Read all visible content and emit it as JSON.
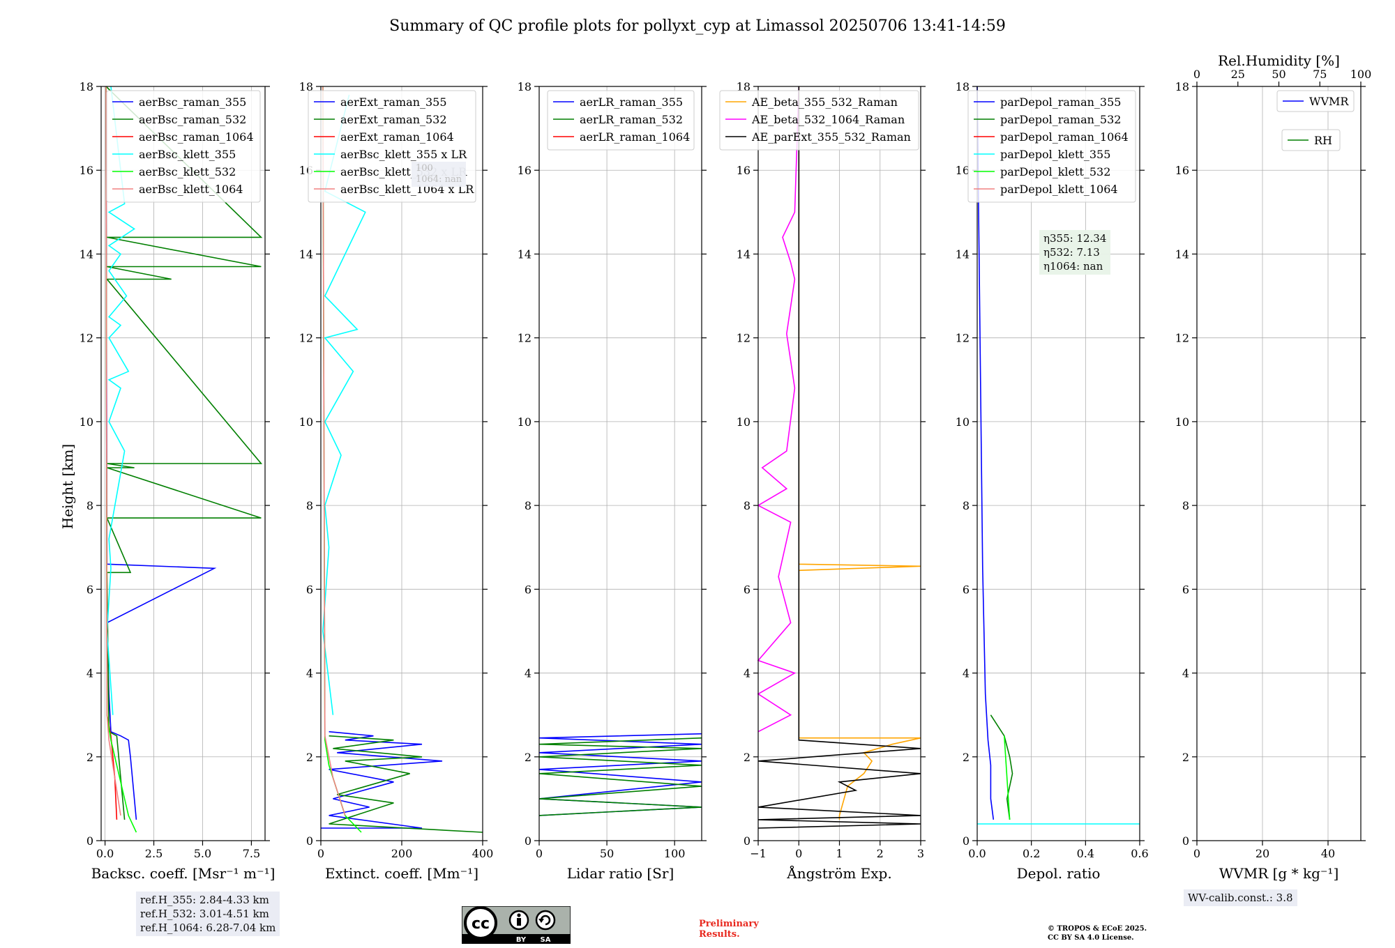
{
  "title": "Summary of QC profile plots for pollyxt_cyp at Limassol 20250706 13:41-14:59",
  "ylabel": "Height [km]",
  "chart_data": [
    {
      "type": "line",
      "id": "bsc",
      "xlabel": "Backsc. coeff. [Msr⁻¹ m⁻¹]",
      "xlim": [
        -0.2,
        8.2
      ],
      "xticks": [
        0,
        2.5,
        5,
        7.5
      ],
      "xtick_labels": [
        "0.0",
        "2.5",
        "5.0",
        "7.5"
      ],
      "ylim": [
        0,
        18
      ],
      "yticks": [
        0,
        2,
        4,
        6,
        8,
        10,
        12,
        14,
        16,
        18
      ],
      "grid": true,
      "legend_position": "top-right",
      "series": [
        {
          "name": "aerBsc_raman_355",
          "color": "#0000ff",
          "x": [
            1.6,
            1.5,
            1.4,
            1.3,
            1.2,
            0.8,
            0.3,
            0.2,
            0.1,
            5.6,
            0.1,
            0.05
          ],
          "y": [
            0.5,
            1.0,
            1.5,
            2.0,
            2.4,
            2.5,
            2.6,
            3.5,
            5.2,
            6.5,
            6.6,
            18.0
          ]
        },
        {
          "name": "aerBsc_raman_532",
          "color": "#007f00",
          "x": [
            1.0,
            0.9,
            0.8,
            0.7,
            0.6,
            0.2,
            0.1,
            1.3,
            0.1,
            8.0,
            0.1,
            1.5,
            0.1,
            8.0,
            0.1,
            3.4,
            0.1,
            8.0,
            0.1,
            8.0,
            0.05
          ],
          "y": [
            0.5,
            1.0,
            1.5,
            2.0,
            2.5,
            2.6,
            6.4,
            6.4,
            7.7,
            7.7,
            8.9,
            8.9,
            9.0,
            9.0,
            13.4,
            13.4,
            13.7,
            13.7,
            14.4,
            14.4,
            18.0
          ]
        },
        {
          "name": "aerBsc_raman_1064",
          "color": "#ff0000",
          "x": [
            0.6,
            0.5,
            0.3,
            0.1,
            0.05
          ],
          "y": [
            0.5,
            1.5,
            2.5,
            3.0,
            18.0
          ]
        },
        {
          "name": "aerBsc_klett_355",
          "color": "#00ffff",
          "x": [
            0.4,
            0.1,
            0.3,
            0.2,
            1.0,
            0.2,
            0.8,
            0.2,
            1.2,
            0.2,
            0.8,
            0.2,
            1.1,
            0.2,
            0.8,
            0.2,
            1.5,
            0.2,
            1.0,
            0.3
          ],
          "y": [
            3.0,
            5.0,
            6.5,
            7.2,
            9.3,
            10.0,
            10.8,
            11.0,
            11.2,
            12.0,
            12.3,
            12.5,
            13.0,
            13.6,
            14.0,
            14.2,
            14.6,
            15.0,
            15.2,
            18.0
          ]
        },
        {
          "name": "aerBsc_klett_532",
          "color": "#00ff00",
          "x": [
            1.6,
            1.2,
            0.9,
            0.6,
            0.3,
            0.1,
            0.05
          ],
          "y": [
            0.2,
            0.6,
            1.2,
            1.8,
            2.4,
            3.0,
            18.0
          ]
        },
        {
          "name": "aerBsc_klett_1064",
          "color": "#f08080",
          "x": [
            0.8,
            0.6,
            0.4,
            0.2,
            0.1,
            0.05
          ],
          "y": [
            0.6,
            1.2,
            1.8,
            2.4,
            3.0,
            18.0
          ]
        }
      ]
    },
    {
      "type": "line",
      "id": "ext",
      "xlabel": "Extinct. coeff. [Mm⁻¹]",
      "xlim": [
        0,
        400
      ],
      "xticks": [
        0,
        200,
        400
      ],
      "xtick_labels": [
        "0",
        "200",
        "400"
      ],
      "ylim": [
        0,
        18
      ],
      "yticks": [
        0,
        2,
        4,
        6,
        8,
        10,
        12,
        14,
        16,
        18
      ],
      "grid": true,
      "legend_position": "top-right",
      "series": [
        {
          "name": "aerExt_raman_355",
          "color": "#0000ff",
          "x": [
            0,
            250,
            20,
            120,
            30,
            180,
            20,
            300,
            40,
            250,
            60,
            130,
            20
          ],
          "y": [
            0.3,
            0.3,
            0.6,
            0.8,
            1.0,
            1.4,
            1.7,
            1.9,
            2.1,
            2.3,
            2.4,
            2.5,
            2.6
          ]
        },
        {
          "name": "aerExt_raman_532",
          "color": "#007f00",
          "x": [
            400,
            20,
            180,
            40,
            220,
            60,
            250,
            30,
            180,
            20
          ],
          "y": [
            0.2,
            0.4,
            0.9,
            1.1,
            1.6,
            1.9,
            2.0,
            2.2,
            2.4,
            2.5
          ]
        },
        {
          "name": "aerExt_raman_1064",
          "color": "#ff0000",
          "x": [
            0
          ],
          "y": [
            0
          ]
        },
        {
          "name": "aerBsc_klett_355 x LR",
          "color": "#00ffff",
          "x": [
            30,
            5,
            20,
            10,
            50,
            10,
            80,
            10,
            90,
            10,
            110,
            10,
            70
          ],
          "y": [
            3.0,
            5.0,
            7.0,
            8.0,
            9.2,
            10.0,
            11.2,
            12.0,
            12.2,
            13.0,
            15.0,
            15.5,
            17.8
          ]
        },
        {
          "name": "aerBsc_klett_532 x LR",
          "color": "#00ff00",
          "x": [
            100,
            60,
            40,
            20,
            10,
            5
          ],
          "y": [
            0.2,
            0.6,
            1.2,
            1.8,
            2.4,
            18.0
          ]
        },
        {
          "name": "aerBsc_klett_1064 x LR",
          "color": "#f08080",
          "x": [
            60,
            30,
            10,
            5
          ],
          "y": [
            0.6,
            1.5,
            2.5,
            18.0
          ]
        }
      ]
    },
    {
      "type": "line",
      "id": "lr",
      "xlabel": "Lidar ratio [Sr]",
      "xlim": [
        0,
        120
      ],
      "xticks": [
        0,
        50,
        100
      ],
      "xtick_labels": [
        "0",
        "50",
        "100"
      ],
      "ylim": [
        0,
        18
      ],
      "yticks": [
        0,
        2,
        4,
        6,
        8,
        10,
        12,
        14,
        16,
        18
      ],
      "grid": true,
      "legend_position": "top-right",
      "series": [
        {
          "name": "aerLR_raman_355",
          "color": "#0000ff",
          "x": [
            0,
            120,
            0,
            120,
            0,
            120,
            0,
            120,
            0,
            120
          ],
          "y": [
            0.6,
            0.8,
            1.0,
            1.4,
            1.7,
            1.9,
            2.1,
            2.3,
            2.45,
            2.55
          ]
        },
        {
          "name": "aerLR_raman_532",
          "color": "#007f00",
          "x": [
            0,
            120,
            0,
            120,
            0,
            120,
            0,
            120,
            0,
            120
          ],
          "y": [
            0.6,
            0.8,
            1.0,
            1.3,
            1.6,
            1.8,
            2.0,
            2.2,
            2.3,
            2.45
          ]
        },
        {
          "name": "aerLR_raman_1064",
          "color": "#ff0000",
          "x": [
            0
          ],
          "y": [
            0
          ]
        }
      ]
    },
    {
      "type": "line",
      "id": "ae",
      "xlabel": "Ångström Exp.",
      "xlim": [
        -1,
        3
      ],
      "xticks": [
        -1,
        0,
        1,
        2,
        3
      ],
      "xtick_labels": [
        "−1",
        "0",
        "1",
        "2",
        "3"
      ],
      "ylim": [
        0,
        18
      ],
      "yticks": [
        0,
        2,
        4,
        6,
        8,
        10,
        12,
        14,
        16,
        18
      ],
      "grid": true,
      "legend_position": "top-center",
      "series": [
        {
          "name": "AE_beta_355_532_Raman",
          "color": "#ffa500",
          "x": [
            1.0,
            1.0,
            1.2,
            1.6,
            1.8,
            1.6,
            2.3,
            3.0,
            0.0,
            0.0,
            3.0,
            0.0,
            0.0
          ],
          "y": [
            0.5,
            0.6,
            1.3,
            1.6,
            1.9,
            2.1,
            2.3,
            2.45,
            2.45,
            6.45,
            6.55,
            6.6,
            18.0
          ]
        },
        {
          "name": "AE_beta_532_1064_Raman",
          "color": "#ff00ff",
          "x": [
            -1.0,
            -0.2,
            -1.0,
            -0.1,
            -1.0,
            -0.2,
            -0.5,
            -0.2,
            -1.0,
            -0.3,
            -0.9,
            -0.3,
            -0.1,
            -0.3,
            -0.1,
            -0.2,
            -0.4,
            -0.1,
            0.0
          ],
          "y": [
            2.6,
            3.0,
            3.5,
            4.0,
            4.3,
            5.2,
            6.3,
            7.6,
            8.0,
            8.4,
            8.9,
            9.3,
            10.8,
            12.1,
            13.4,
            13.8,
            14.4,
            15.0,
            18.0
          ]
        },
        {
          "name": "AE_parExt_355_532_Raman",
          "color": "#000000",
          "x": [
            -1.0,
            3.0,
            -1.0,
            3.0,
            -1.0,
            1.4,
            1.0,
            3.0,
            -1.0,
            3.0,
            0.0,
            0.0
          ],
          "y": [
            0.3,
            0.4,
            0.5,
            0.6,
            0.8,
            1.2,
            1.4,
            1.6,
            1.9,
            2.2,
            2.4,
            18.0
          ]
        }
      ]
    },
    {
      "type": "line",
      "id": "depol",
      "xlabel": "Depol. ratio",
      "xlim": [
        0,
        0.6
      ],
      "xticks": [
        0,
        0.2,
        0.4,
        0.6
      ],
      "xtick_labels": [
        "0.0",
        "0.2",
        "0.4",
        "0.6"
      ],
      "ylim": [
        0,
        18
      ],
      "yticks": [
        0,
        2,
        4,
        6,
        8,
        10,
        12,
        14,
        16,
        18
      ],
      "grid": true,
      "legend_position": "top-left",
      "series": [
        {
          "name": "parDepol_raman_355",
          "color": "#0000ff",
          "x": [
            0.06,
            0.05,
            0.05,
            0.04,
            0.03,
            0.02,
            0.0
          ],
          "y": [
            0.5,
            1.0,
            1.8,
            2.4,
            3.5,
            6.5,
            18.0
          ]
        },
        {
          "name": "parDepol_raman_532",
          "color": "#007f00",
          "x": [
            0.12,
            0.11,
            0.13,
            0.12,
            0.1,
            0.05
          ],
          "y": [
            0.5,
            1.0,
            1.6,
            2.0,
            2.5,
            3.0
          ]
        },
        {
          "name": "parDepol_raman_1064",
          "color": "#ff0000",
          "x": [
            0
          ],
          "y": [
            0
          ]
        },
        {
          "name": "parDepol_klett_355",
          "color": "#00ffff",
          "x": [
            0.6,
            0.0
          ],
          "y": [
            0.4,
            0.4
          ]
        },
        {
          "name": "parDepol_klett_532",
          "color": "#00ff00",
          "x": [
            0.12,
            0.1
          ],
          "y": [
            0.5,
            2.5
          ]
        },
        {
          "name": "parDepol_klett_1064",
          "color": "#f08080",
          "x": [
            0
          ],
          "y": [
            0
          ]
        }
      ]
    },
    {
      "type": "line",
      "id": "wv",
      "xlabel": "WVMR [g * kg⁻¹]",
      "xlim": [
        0,
        50
      ],
      "xticks": [
        0,
        20,
        40
      ],
      "xtick_labels": [
        "0",
        "20",
        "40"
      ],
      "top_xlabel": "Rel.Humidity [%]",
      "top_xlim": [
        0,
        100
      ],
      "top_xticks": [
        0,
        25,
        50,
        75,
        100
      ],
      "top_xtick_labels": [
        "0",
        "25",
        "50",
        "75",
        "100"
      ],
      "ylim": [
        0,
        18
      ],
      "yticks": [
        0,
        2,
        4,
        6,
        8,
        10,
        12,
        14,
        16,
        18
      ],
      "grid": true,
      "legend_position": "top-right",
      "series": [
        {
          "name": "WVMR",
          "color": "#0000ff",
          "x": [
            0
          ],
          "y": [
            0
          ]
        },
        {
          "name": "RH",
          "color": "#007f00",
          "x": [
            0
          ],
          "y": [
            0
          ]
        }
      ]
    }
  ],
  "annotations": {
    "ref_heights": [
      "ref.H_355: 2.84-4.33 km",
      "ref.H_532: 3.01-4.51 km",
      "ref.H_1064: 6.28-7.04 km"
    ],
    "eta": [
      "η355: 12.34",
      "η532: 7.13",
      "η1064: nan"
    ],
    "wv_calib": "WV-calib.const.: 3.8",
    "ext_note": [
      "100",
      "1064: nan"
    ],
    "preliminary": [
      "Preliminary",
      "Results."
    ],
    "copyright": [
      "© TROPOS & ECoE 2025.",
      "CC BY SA 4.0 License."
    ],
    "license_badge": [
      "BY",
      "SA"
    ]
  }
}
